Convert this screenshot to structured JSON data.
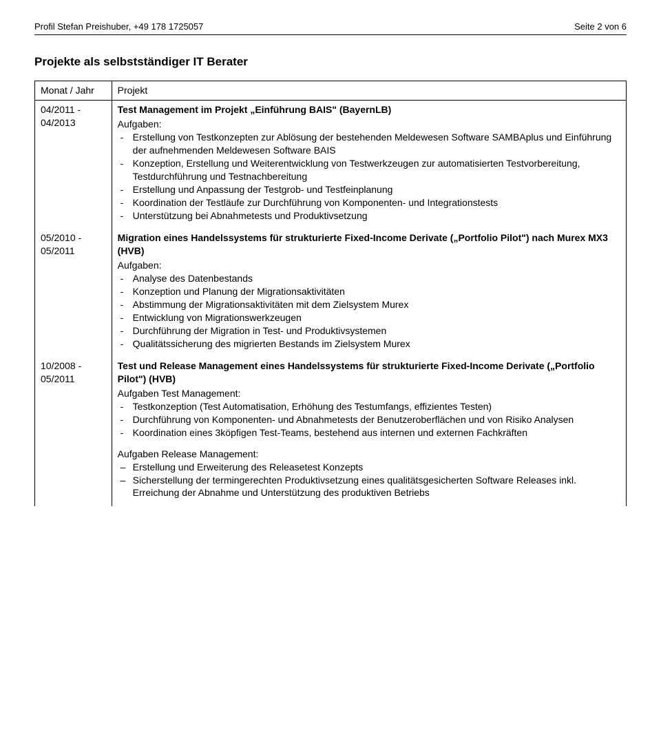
{
  "header": {
    "left": "Profil Stefan Preishuber, +49 178 1725057",
    "right": "Seite 2 von 6"
  },
  "section_title": "Projekte als selbstständiger IT Berater",
  "table": {
    "columns": {
      "period": "Monat / Jahr",
      "project": "Projekt"
    },
    "rows": [
      {
        "period": "04/2011 - 04/2013",
        "title": "Test Management im Projekt „Einführung BAIS\" (BayernLB)",
        "subhead1": "Aufgaben:",
        "items1": [
          "Erstellung von Testkonzepten zur Ablösung der bestehenden Meldewesen Software SAMBAplus und Einführung der aufnehmenden Meldewesen Software BAIS",
          "Konzeption, Erstellung und Weiterentwicklung von Testwerkzeugen zur automatisierten Testvorbereitung, Testdurchführung und Testnachbereitung",
          "Erstellung und Anpassung der Testgrob- und Testfeinplanung",
          "Koordination der Testläufe zur Durchführung von Komponenten- und Integrationstests",
          "Unterstützung bei Abnahmetests und Produktivsetzung"
        ]
      },
      {
        "period": "05/2010 - 05/2011",
        "title": "Migration eines Handelssystems für strukturierte Fixed-Income Derivate („Portfolio Pilot\") nach Murex MX3 (HVB)",
        "subhead1": "Aufgaben:",
        "items1": [
          "Analyse des Datenbestands",
          "Konzeption und Planung der Migrationsaktivitäten",
          "Abstimmung der Migrationsaktivitäten mit dem Zielsystem Murex",
          "Entwicklung von Migrationswerkzeugen",
          "Durchführung der Migration in Test- und Produktivsystemen",
          "Qualitätssicherung des migrierten Bestands im Zielsystem Murex"
        ]
      },
      {
        "period": "10/2008 - 05/2011",
        "title": "Test und Release Management eines Handelssystems für strukturierte Fixed-Income Derivate („Portfolio Pilot\") (HVB)",
        "subhead1": "Aufgaben Test Management:",
        "items1": [
          "Testkonzeption (Test Automatisation, Erhöhung des Testumfangs, effizientes Testen)",
          "Durchführung von Komponenten- und Abnahmetests der Benutzeroberflächen und von Risiko Analysen",
          "Koordination eines 3köpfigen Test-Teams, bestehend aus internen und externen Fachkräften"
        ],
        "subhead2": "Aufgaben Release Management:",
        "items2": [
          "Erstellung und Erweiterung des Releasetest Konzepts",
          "Sicherstellung der termingerechten Produktivsetzung eines qualitätsgesicherten Software Releases inkl. Erreichung der Abnahme und Unterstützung des produktiven Betriebs"
        ]
      }
    ]
  }
}
